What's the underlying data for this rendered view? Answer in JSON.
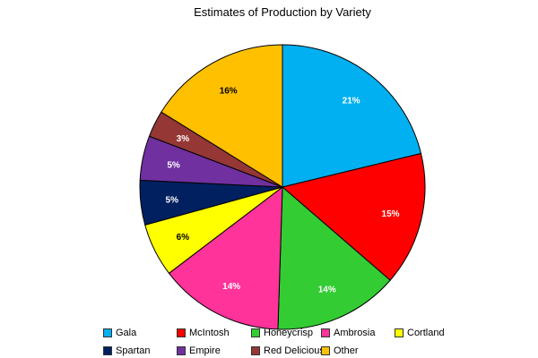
{
  "chart_data": {
    "type": "pie",
    "title": "Estimates of Production by Variety",
    "categories": [
      "Gala",
      "McIntosh",
      "Honeycrisp",
      "Ambrosia",
      "Cortland",
      "Spartan",
      "Empire",
      "Red Delicious",
      "Other"
    ],
    "values": [
      21,
      15,
      14,
      14,
      6,
      5,
      5,
      3,
      16
    ],
    "labels": [
      "21%",
      "15%",
      "14%",
      "14%",
      "6%",
      "5%",
      "5%",
      "3%",
      "16%"
    ],
    "colors": [
      "#00B0F0",
      "#FF0000",
      "#33CC33",
      "#FF3399",
      "#FFFF00",
      "#002060",
      "#7030A0",
      "#953735",
      "#FFC000"
    ],
    "label_colors": [
      "#ffffff",
      "#ffffff",
      "#ffffff",
      "#ffffff",
      "#000000",
      "#ffffff",
      "#ffffff",
      "#ffffff",
      "#000000"
    ],
    "start": "top",
    "direction": "clockwise",
    "legend_position": "bottom"
  }
}
